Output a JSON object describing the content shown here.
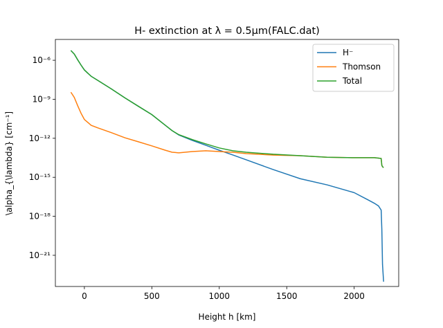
{
  "chart_data": {
    "type": "line",
    "title": "H- extinction at λ = 0.5μm(FALC.dat)",
    "x_label": "Height h [km]",
    "y_label": "\\alpha_{\\lambda} [cm⁻¹]",
    "x": [
      -100,
      -75,
      -50,
      -25,
      0,
      50,
      100,
      200,
      300,
      400,
      500,
      600,
      650,
      700,
      800,
      900,
      1000,
      1100,
      1200,
      1400,
      1600,
      1800,
      2000,
      2100,
      2150,
      2180,
      2200,
      2205,
      2210,
      2218
    ],
    "series": [
      {
        "name": "H⁻",
        "color": "#1f77b4",
        "values": [
          5.6e-06,
          3e-06,
          1.1e-06,
          4.3e-07,
          1.8e-07,
          5.9e-08,
          2.8e-08,
          6.3e-09,
          1.3e-09,
          2.9e-10,
          6.6e-11,
          1e-11,
          3.9e-12,
          1.8e-12,
          6.9e-13,
          2.9e-13,
          1.2e-13,
          5.2e-14,
          2.2e-14,
          3.9e-15,
          7.8e-16,
          2.6e-16,
          6.6e-17,
          1.9e-17,
          1e-17,
          6.3e-18,
          3e-18,
          1e-19,
          2e-22,
          9.3e-24
        ]
      },
      {
        "name": "Thomson",
        "color": "#ff7f0e",
        "values": [
          3.5e-09,
          1.4e-09,
          3.3e-10,
          8.5e-11,
          2.8e-11,
          1e-11,
          6.3e-12,
          2.7e-12,
          1.1e-12,
          5.4e-13,
          2.6e-13,
          1.2e-13,
          8.5e-14,
          7.6e-14,
          9.5e-14,
          1.1e-13,
          9.5e-14,
          8.5e-14,
          6.6e-14,
          5.1e-14,
          4.6e-14,
          3.5e-14,
          3.2e-14,
          3.2e-14,
          3.2e-14,
          3e-14,
          2.8e-14,
          8.3e-15,
          6.5e-15,
          5.6e-15
        ]
      },
      {
        "name": "Total",
        "color": "#2ca02c",
        "values": [
          5.6e-06,
          3e-06,
          1.1e-06,
          4.3e-07,
          1.8e-07,
          5.9e-08,
          2.8e-08,
          6.3e-09,
          1.3e-09,
          2.9e-10,
          6.6e-11,
          1e-11,
          3.9e-12,
          1.9e-12,
          7.9e-13,
          3.7e-13,
          1.8e-13,
          1.1e-13,
          8.5e-14,
          5.9e-14,
          4.6e-14,
          3.5e-14,
          3.2e-14,
          3.2e-14,
          3.2e-14,
          3e-14,
          2.8e-14,
          8.3e-15,
          6.5e-15,
          5.6e-15
        ]
      }
    ],
    "xlim": [
      -215,
      2330
    ],
    "xticks": [
      0,
      500,
      1000,
      1500,
      2000
    ],
    "ylim": [
      4e-24,
      4e-05
    ],
    "yscale": "log",
    "yticks": [
      {
        "value": 1e-06,
        "label": "10⁻⁶"
      },
      {
        "value": 1e-09,
        "label": "10⁻⁹"
      },
      {
        "value": 1e-12,
        "label": "10⁻¹²"
      },
      {
        "value": 1e-15,
        "label": "10⁻¹⁵"
      },
      {
        "value": 1e-18,
        "label": "10⁻¹⁸"
      },
      {
        "value": 1e-21,
        "label": "10⁻²¹"
      }
    ],
    "legend": "upper right"
  }
}
